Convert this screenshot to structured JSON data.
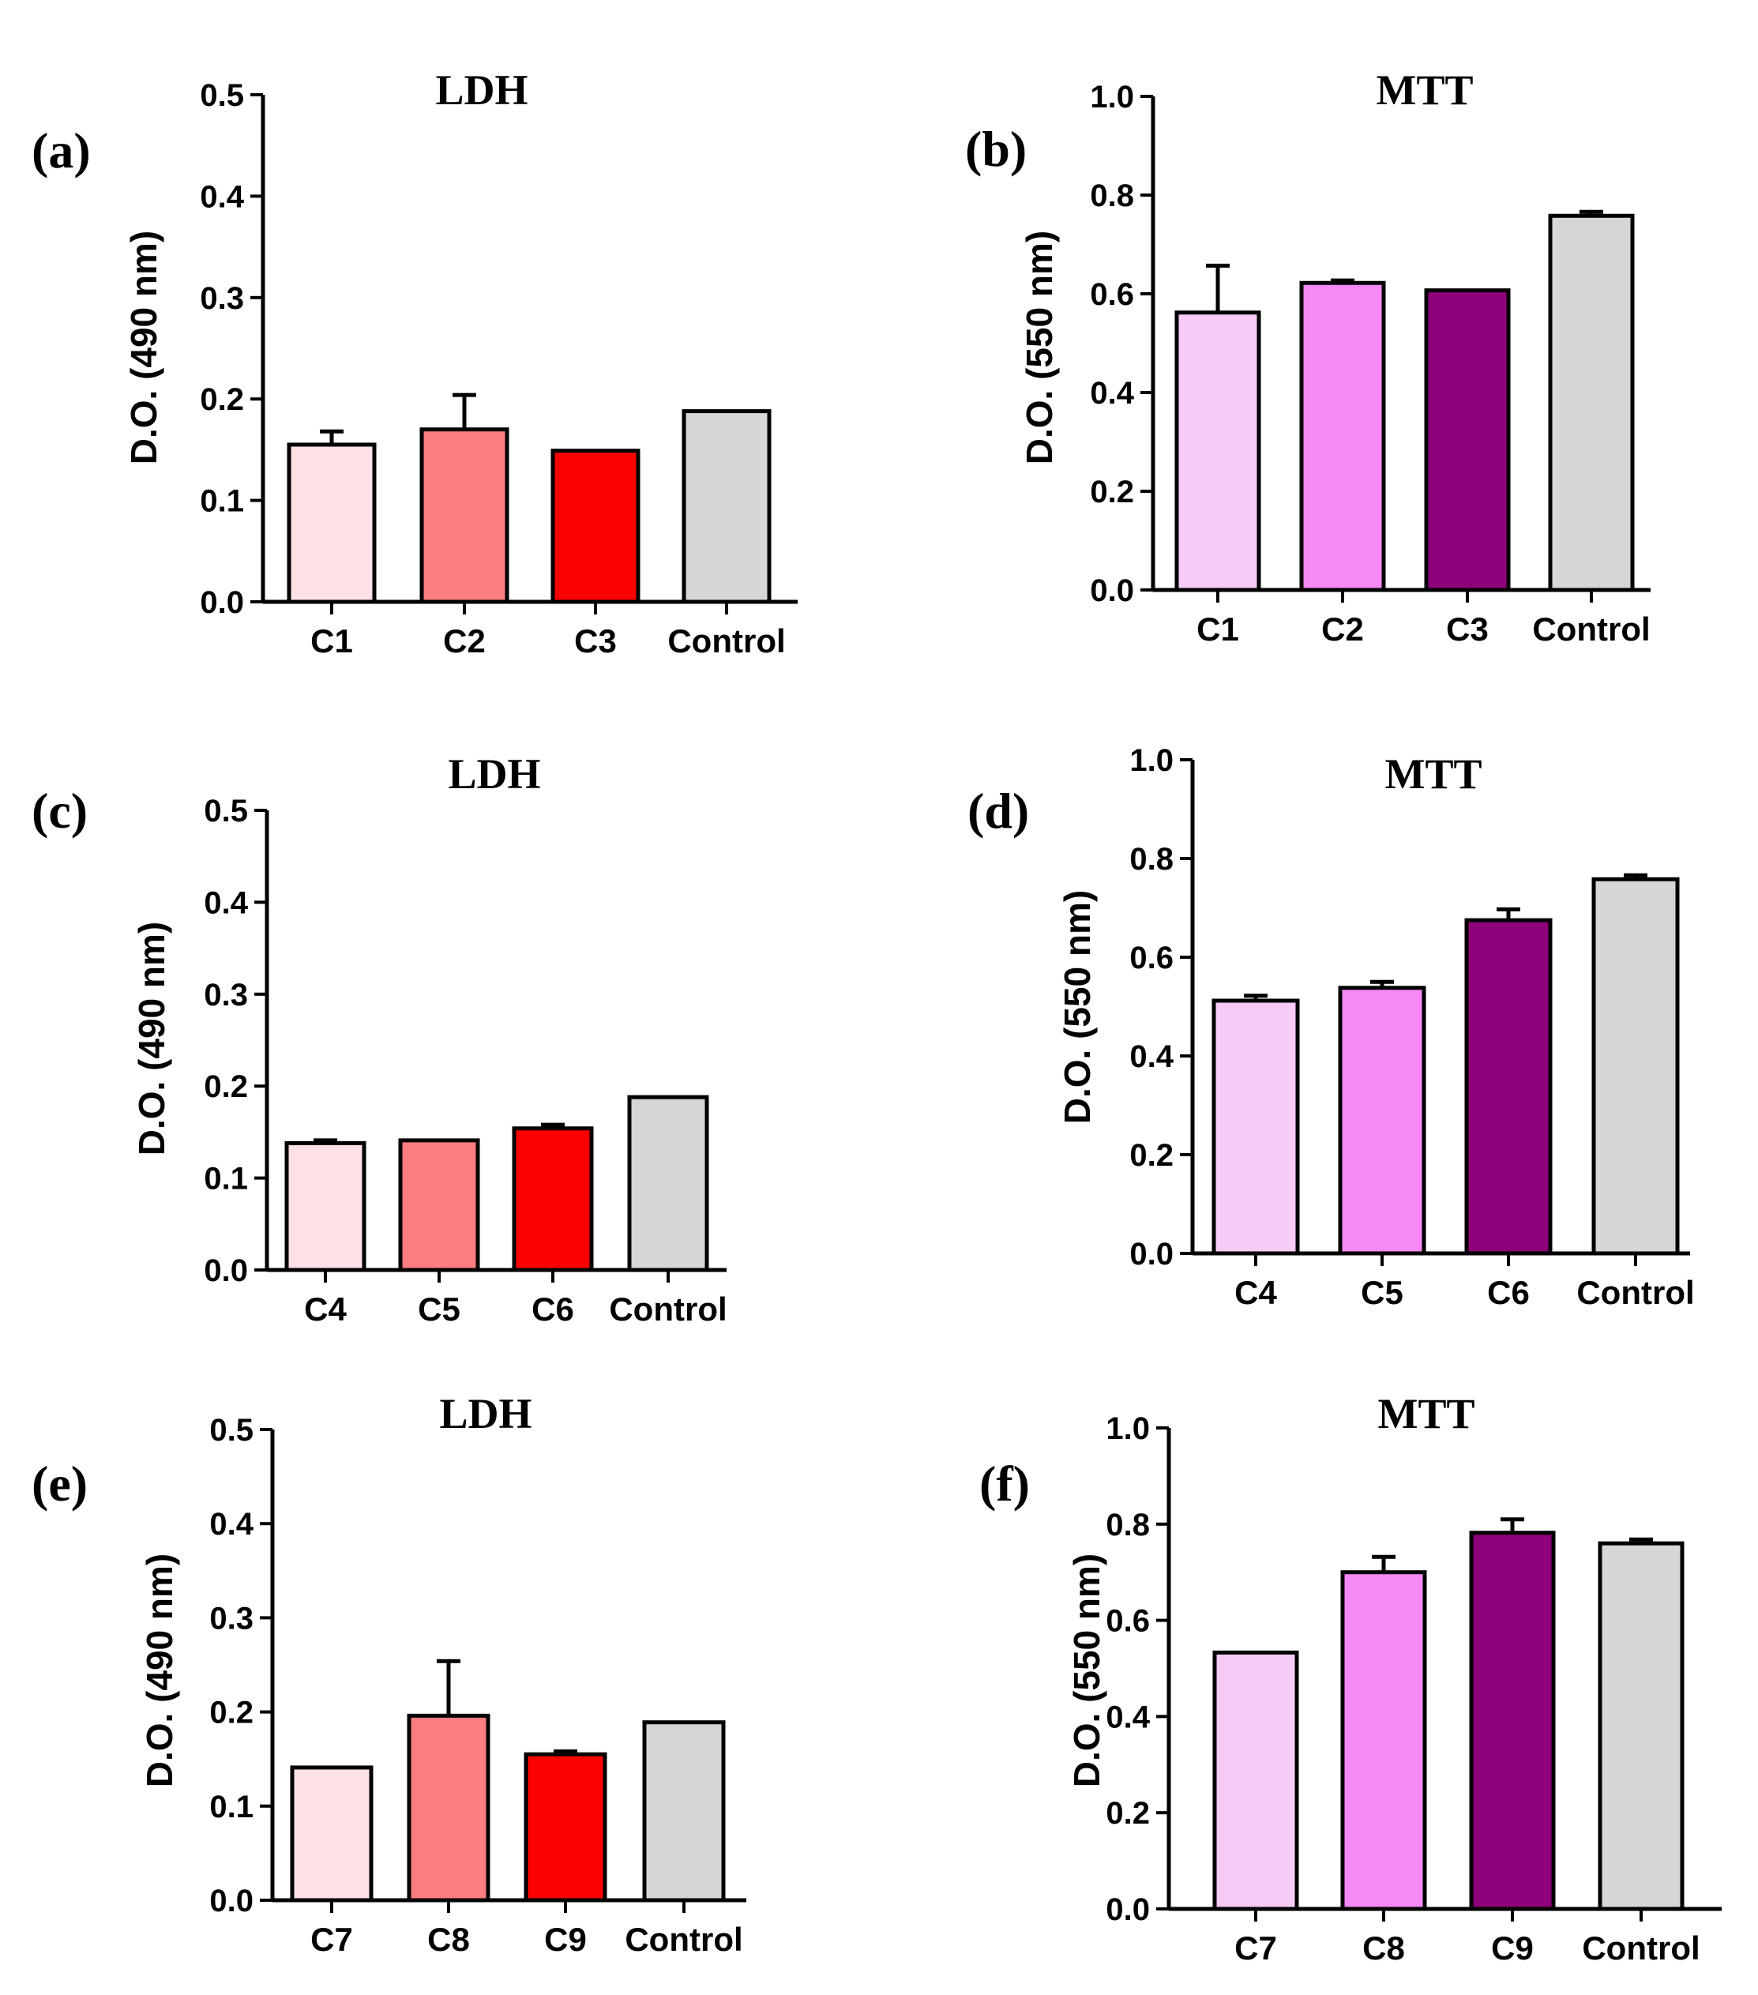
{
  "chart_data": [
    {
      "panel": "(a)",
      "type": "bar",
      "title": "LDH",
      "ylabel": "D.O. (490 nm)",
      "xlabel": "",
      "ylim": [
        0,
        0.5
      ],
      "yticks": [
        "0.0",
        "0.1",
        "0.2",
        "0.3",
        "0.4",
        "0.5"
      ],
      "categories": [
        "C1",
        "C2",
        "C3",
        "Control"
      ],
      "values": [
        0.155,
        0.17,
        0.149,
        0.188
      ],
      "errors": [
        0.013,
        0.034,
        0.0,
        0.0
      ],
      "colors": [
        "#fde1e4",
        "#fb7d7f",
        "#fd0000",
        "#d6d6d6"
      ]
    },
    {
      "panel": "(b)",
      "type": "bar",
      "title": "MTT",
      "ylabel": "D.O. (550 nm)",
      "xlabel": "",
      "ylim": [
        0,
        1.0
      ],
      "yticks": [
        "0.0",
        "0.2",
        "0.4",
        "0.6",
        "0.8",
        "1.0"
      ],
      "categories": [
        "C1",
        "C2",
        "C3",
        "Control"
      ],
      "values": [
        0.562,
        0.622,
        0.607,
        0.758
      ],
      "errors": [
        0.095,
        0.005,
        0.0,
        0.008
      ],
      "colors": [
        "#f6cbf6",
        "#f589f5",
        "#8e017a",
        "#d6d6d6"
      ]
    },
    {
      "panel": "(c)",
      "type": "bar",
      "title": "LDH",
      "ylabel": "D.O. (490 nm)",
      "xlabel": "",
      "ylim": [
        0,
        0.5
      ],
      "yticks": [
        "0.0",
        "0.1",
        "0.2",
        "0.3",
        "0.4",
        "0.5"
      ],
      "categories": [
        "C4",
        "C5",
        "C6",
        "Control"
      ],
      "values": [
        0.138,
        0.141,
        0.154,
        0.188
      ],
      "errors": [
        0.003,
        0.0,
        0.004,
        0.0
      ],
      "colors": [
        "#fde1e4",
        "#fb7d7f",
        "#fd0000",
        "#d6d6d6"
      ]
    },
    {
      "panel": "(d)",
      "type": "bar",
      "title": "MTT",
      "ylabel": "D.O. (550 nm)",
      "xlabel": "",
      "ylim": [
        0,
        1.0
      ],
      "yticks": [
        "0.0",
        "0.2",
        "0.4",
        "0.6",
        "0.8",
        "1.0"
      ],
      "categories": [
        "C4",
        "C5",
        "C6",
        "Control"
      ],
      "values": [
        0.512,
        0.538,
        0.675,
        0.758
      ],
      "errors": [
        0.01,
        0.012,
        0.022,
        0.008
      ],
      "colors": [
        "#f6cbf6",
        "#f589f5",
        "#8e017a",
        "#d6d6d6"
      ]
    },
    {
      "panel": "(e)",
      "type": "bar",
      "title": "LDH",
      "ylabel": "D.O. (490 nm)",
      "xlabel": "",
      "ylim": [
        0,
        0.5
      ],
      "yticks": [
        "0.0",
        "0.1",
        "0.2",
        "0.3",
        "0.4",
        "0.5"
      ],
      "categories": [
        "C7",
        "C8",
        "C9",
        "Control"
      ],
      "values": [
        0.141,
        0.196,
        0.155,
        0.189
      ],
      "errors": [
        0.0,
        0.058,
        0.003,
        0.0
      ],
      "colors": [
        "#fde1e4",
        "#fb7d7f",
        "#fd0000",
        "#d6d6d6"
      ]
    },
    {
      "panel": "(f)",
      "type": "bar",
      "title": "MTT",
      "ylabel": "D.O. (550 nm)",
      "xlabel": "",
      "ylim": [
        0,
        1.0
      ],
      "yticks": [
        "0.0",
        "0.2",
        "0.4",
        "0.6",
        "0.8",
        "1.0"
      ],
      "categories": [
        "C7",
        "C8",
        "C9",
        "Control"
      ],
      "values": [
        0.533,
        0.7,
        0.782,
        0.76
      ],
      "errors": [
        0.0,
        0.032,
        0.028,
        0.008
      ],
      "colors": [
        "#f6cbf6",
        "#f589f5",
        "#8e017a",
        "#d6d6d6"
      ]
    }
  ]
}
